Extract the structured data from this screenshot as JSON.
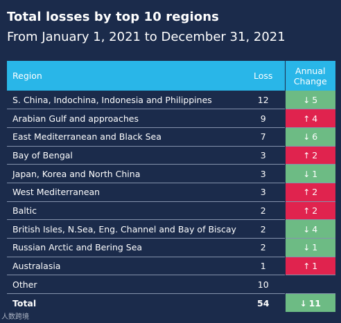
{
  "header": {
    "title": "Total losses by top 10 regions",
    "subtitle": "From January 1, 2021 to December 31, 2021"
  },
  "colors": {
    "background": "#1b2b4b",
    "header": "#29b6e8",
    "decrease": "#6dbb84",
    "increase": "#e0234e"
  },
  "icons": {
    "decrease": "arrow-down-icon",
    "increase": "arrow-up-icon"
  },
  "chart_data": {
    "type": "table",
    "title": "Total losses by top 10 regions",
    "subtitle": "From January 1, 2021 to December 31, 2021",
    "columns": [
      "Region",
      "Loss",
      "Annual Change"
    ],
    "rows": [
      {
        "region": "S. China, Indochina, Indonesia and Philippines",
        "loss": "12",
        "change": "5",
        "direction": "down"
      },
      {
        "region": "Arabian Gulf and approaches",
        "loss": "9",
        "change": "4",
        "direction": "up"
      },
      {
        "region": "East Mediterranean and Black Sea",
        "loss": "7",
        "change": "6",
        "direction": "down"
      },
      {
        "region": "Bay of Bengal",
        "loss": "3",
        "change": "2",
        "direction": "up"
      },
      {
        "region": "Japan, Korea and North China",
        "loss": "3",
        "change": "1",
        "direction": "down"
      },
      {
        "region": "West Mediterranean",
        "loss": "3",
        "change": "2",
        "direction": "up"
      },
      {
        "region": "Baltic",
        "loss": "2",
        "change": "2",
        "direction": "up"
      },
      {
        "region": "British Isles, N.Sea, Eng. Channel and Bay of Biscay",
        "loss": "2",
        "change": "4",
        "direction": "down"
      },
      {
        "region": "Russian Arctic and Bering Sea",
        "loss": "2",
        "change": "1",
        "direction": "down"
      },
      {
        "region": "Australasia",
        "loss": "1",
        "change": "1",
        "direction": "up"
      },
      {
        "region": "Other",
        "loss": "10",
        "change": "",
        "direction": "none"
      }
    ],
    "total": {
      "label": "Total",
      "loss": "54",
      "change": "11",
      "direction": "down"
    }
  },
  "watermark": "人数跨境"
}
